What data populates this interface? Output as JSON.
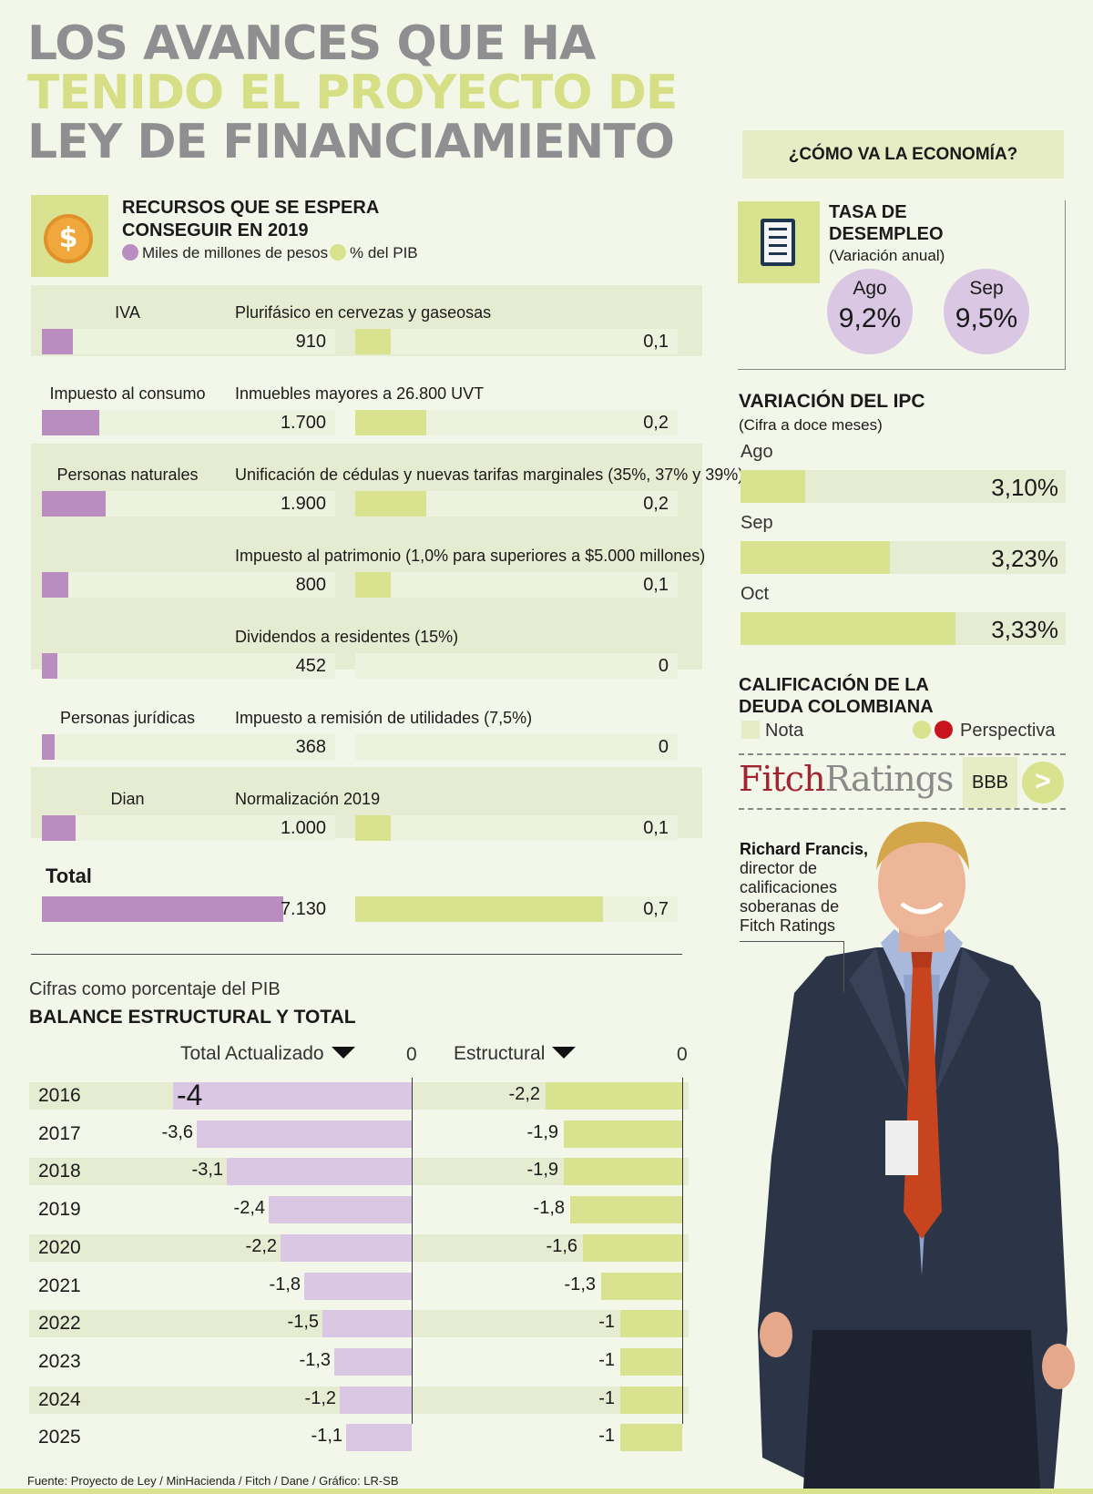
{
  "title": {
    "line1": "LOS AVANCES QUE HA",
    "line2": "TENIDO EL PROYECTO DE",
    "line3": "LEY DE FINANCIAMIENTO"
  },
  "recursos": {
    "title": "RECURSOS QUE SE ESPERA CONSEGUIR EN 2019",
    "coin_symbol": "$",
    "legend_pesos": "Miles de millones de pesos",
    "legend_pib": "% del PIB",
    "max_pesos": 7130,
    "max_pib": 0.7,
    "rows": [
      {
        "category": "IVA",
        "description": "Plurifásico en cervezas y gaseosas",
        "pesos": 910,
        "pesos_label": "910",
        "pib": 0.1,
        "pib_label": "0,1"
      },
      {
        "category": "Impuesto al consumo",
        "description": "Inmuebles mayores a 26.800 UVT",
        "pesos": 1700,
        "pesos_label": "1.700",
        "pib": 0.2,
        "pib_label": "0,2"
      },
      {
        "category": "Personas naturales",
        "description": "Unificación de cédulas y nuevas tarifas marginales (35%, 37% y 39%)",
        "pesos": 1900,
        "pesos_label": "1.900",
        "pib": 0.2,
        "pib_label": "0,2"
      },
      {
        "category": "",
        "description": "Impuesto al patrimonio (1,0% para superiores a $5.000 millones)",
        "pesos": 800,
        "pesos_label": "800",
        "pib": 0.1,
        "pib_label": "0,1"
      },
      {
        "category": "",
        "description": "Dividendos a residentes (15%)",
        "pesos": 452,
        "pesos_label": "452",
        "pib": 0,
        "pib_label": "0"
      },
      {
        "category": "Personas jurídicas",
        "description": "Impuesto a remisión de utilidades (7,5%)",
        "pesos": 368,
        "pesos_label": "368",
        "pib": 0,
        "pib_label": "0"
      },
      {
        "category": "Dian",
        "description": "Normalización 2019",
        "pesos": 1000,
        "pesos_label": "1.000",
        "pib": 0.1,
        "pib_label": "0,1"
      }
    ],
    "total": {
      "label": "Total",
      "pesos": 7130,
      "pesos_label": "7.130",
      "pib": 0.7,
      "pib_label": "0,7"
    }
  },
  "chart_data": {
    "type": "bar",
    "subtitle": "Cifras como porcentaje del PIB",
    "title": "BALANCE ESTRUCTURAL Y TOTAL",
    "categories": [
      "2016",
      "2017",
      "2018",
      "2019",
      "2020",
      "2021",
      "2022",
      "2023",
      "2024",
      "2025"
    ],
    "series": [
      {
        "name": "Total Actualizado",
        "values": [
          -4,
          -3.6,
          -3.1,
          -2.4,
          -2.2,
          -1.8,
          -1.5,
          -1.3,
          -1.2,
          -1.1
        ],
        "labels": [
          "-4",
          "-3,6",
          "-3,1",
          "-2,4",
          "-2,2",
          "-1,8",
          "-1,5",
          "-1,3",
          "-1,2",
          "-1,1"
        ],
        "color": "#d9c7e3"
      },
      {
        "name": "Estructural",
        "values": [
          -2.2,
          -1.9,
          -1.9,
          -1.8,
          -1.6,
          -1.3,
          -1,
          -1,
          -1,
          -1
        ],
        "labels": [
          "-2,2",
          "-1,9",
          "-1,9",
          "-1,8",
          "-1,6",
          "-1,3",
          "-1",
          "-1",
          "-1",
          "-1"
        ],
        "color": "#d9e28f"
      }
    ],
    "axis_zero_label": "0",
    "ylim": [
      -4,
      0
    ]
  },
  "source": "Fuente: Proyecto de Ley / MinHacienda / Fitch / Dane / Gráfico: LR-SB",
  "economia": {
    "header": "¿CÓMO VA LA ECONOMÍA?",
    "desempleo": {
      "title": "TASA DE DESEMPLEO",
      "subtitle": "(Variación anual)",
      "items": [
        {
          "month": "Ago",
          "value": "9,2%"
        },
        {
          "month": "Sep",
          "value": "9,5%"
        }
      ]
    },
    "ipc": {
      "title": "VARIACIÓN DEL IPC",
      "subtitle": "(Cifra a doce meses)",
      "min": 3.0,
      "max": 3.35,
      "items": [
        {
          "month": "Ago",
          "value": 3.1,
          "label": "3,10%"
        },
        {
          "month": "Sep",
          "value": 3.23,
          "label": "3,23%"
        },
        {
          "month": "Oct",
          "value": 3.33,
          "label": "3,33%"
        }
      ]
    },
    "calificacion": {
      "title": "CALIFICACIÓN DE LA DEUDA COLOMBIANA",
      "legend_nota": "Nota",
      "legend_perspectiva": "Perspectiva",
      "agency_part1": "Fitch",
      "agency_part2": "Ratings",
      "rating": "BBB",
      "outlook_symbol": ">"
    },
    "quote": {
      "name": "Richard Francis,",
      "role": "director de calificaciones soberanas de Fitch Ratings"
    }
  },
  "colors": {
    "purple": "#b98dc0",
    "light_purple": "#d9c7e3",
    "green": "#d9e28f",
    "red": "#c8141e"
  }
}
